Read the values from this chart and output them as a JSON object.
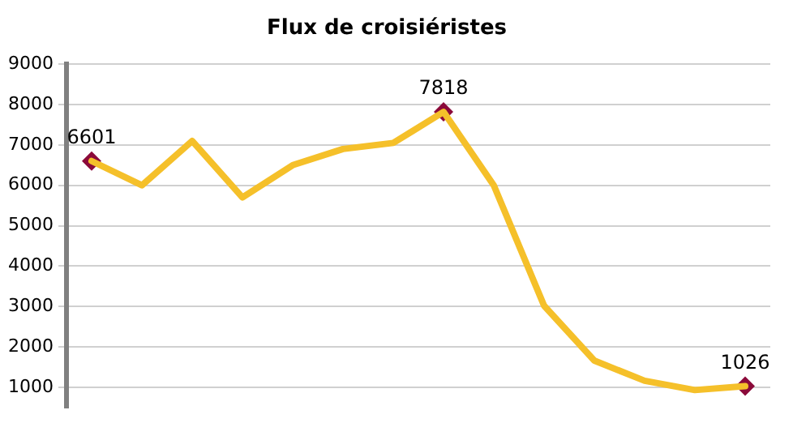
{
  "chart_data": {
    "type": "line",
    "title": "Flux de croisiéristes",
    "categories": [
      null,
      null,
      null,
      null,
      null,
      null,
      null,
      null,
      null,
      null,
      null,
      null,
      null,
      null
    ],
    "series": [
      {
        "type": "line",
        "color": "#f5c02a",
        "marker": "none",
        "values": [
          6601,
          6000,
          7100,
          5700,
          6500,
          6900,
          7050,
          7818,
          6000,
          3020,
          1660,
          1160,
          930,
          1026
        ]
      },
      {
        "type": "scatter",
        "color": "#8b0a3a",
        "marker": "diamond",
        "data_labels": true,
        "values": [
          6601,
          null,
          null,
          null,
          null,
          null,
          null,
          7818,
          null,
          null,
          null,
          null,
          null,
          1026
        ]
      }
    ],
    "ylim": [
      500,
      9000
    ],
    "yticks": [
      1000,
      2000,
      3000,
      4000,
      5000,
      6000,
      7000,
      8000,
      9000
    ],
    "grid": "y",
    "tick_labels": "y",
    "legend": false
  }
}
